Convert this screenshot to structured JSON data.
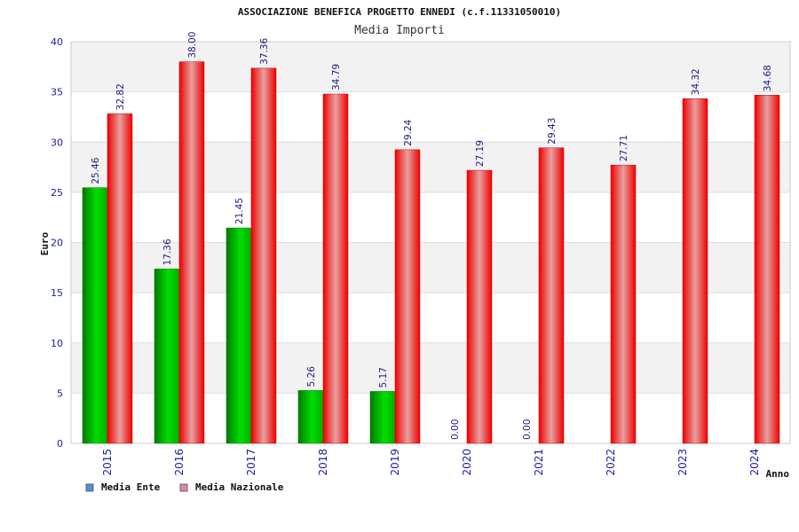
{
  "chart_data": {
    "type": "bar",
    "title": "ASSOCIAZIONE BENEFICA PROGETTO ENNEDI (c.f.11331050010)",
    "subtitle": "Media Importi",
    "xlabel": "Anno",
    "ylabel": "Euro",
    "ylim": [
      0,
      40
    ],
    "yticks": [
      "0",
      "5",
      "10",
      "15",
      "20",
      "25",
      "30",
      "35",
      "40"
    ],
    "categories": [
      "2015",
      "2016",
      "2017",
      "2018",
      "2019",
      "2020",
      "2021",
      "2022",
      "2023",
      "2024"
    ],
    "series": [
      {
        "name": "Media Ente",
        "values": [
          25.46,
          17.36,
          21.45,
          5.26,
          5.17,
          0.0,
          0.0,
          null,
          null,
          null
        ],
        "labels": [
          "25.46",
          "17.36",
          "21.45",
          "5.26",
          "5.17",
          "0.00",
          "0.00",
          "",
          "",
          ""
        ],
        "color": "#00aa00",
        "legend_color": "#4a90e2"
      },
      {
        "name": "Media Nazionale",
        "values": [
          32.82,
          38.0,
          37.36,
          34.79,
          29.24,
          27.19,
          29.43,
          27.71,
          34.32,
          34.68
        ],
        "labels": [
          "32.82",
          "38.00",
          "37.36",
          "34.79",
          "29.24",
          "27.19",
          "29.43",
          "27.71",
          "34.32",
          "34.68"
        ],
        "color": "#ee0000",
        "legend_color": "#d48ab0"
      }
    ],
    "grid": true,
    "legend_position": "bottom-left"
  }
}
